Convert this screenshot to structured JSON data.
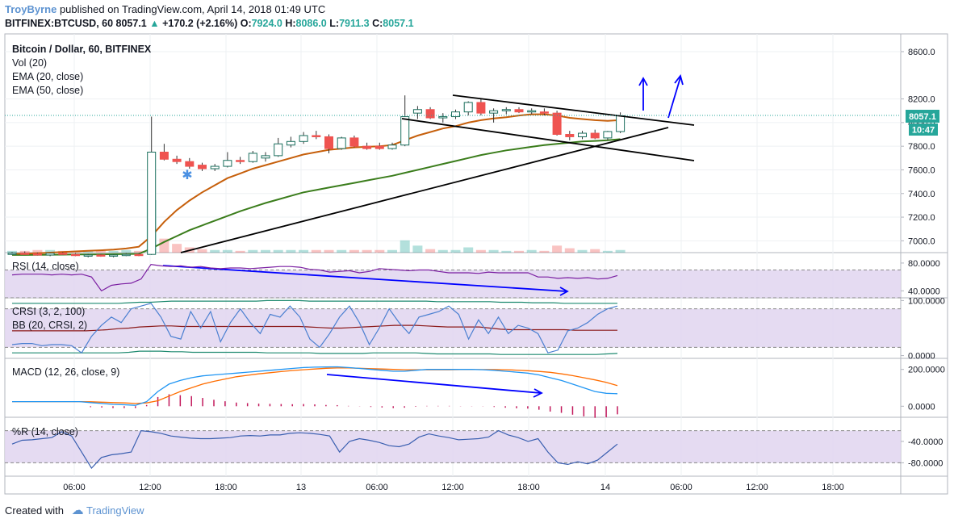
{
  "header": {
    "author": "TroyByrne",
    "published": "published on TradingView.com, April 14, 2018 01:49 UTC",
    "symbol": "BITFINEX:BTCUSD, 60",
    "last": "8057.1",
    "change": "+170.2 (+2.16%)",
    "o_label": "O:",
    "o": "7924.0",
    "h_label": "H:",
    "h": "8086.0",
    "l_label": "L:",
    "l": "7911.3",
    "c_label": "C:",
    "c": "8057.1"
  },
  "legend": {
    "title": "Bitcoin / Dollar, 60, BITFINEX",
    "vol": "Vol (20)",
    "ema20": "EMA (20, close)",
    "ema50": "EMA (50, close)"
  },
  "price_tag": {
    "price": "8057.1",
    "countdown": "10:47"
  },
  "footer": {
    "created": "Created with",
    "brand": "TradingView"
  },
  "colors": {
    "up": "#26a69a",
    "down": "#ef5350",
    "ema20": "#c65f0b",
    "ema50": "#3b7d1c",
    "trend": "#000000",
    "arrow": "#0000ff",
    "band": "#e1d5f0",
    "rsi": "#7b1fa2",
    "crsi": "#4a7fd1",
    "bbmid": "#8b1a1a",
    "bbband": "#1f8a70",
    "macd": "#2196f3",
    "signal": "#ff6d00",
    "hist": "#c2185b",
    "wr": "#3a5fb0"
  },
  "chart_data": [
    {
      "type": "candlestick",
      "title": "Bitcoin / Dollar, 60, BITFINEX",
      "ylim": [
        6900,
        8750
      ],
      "ticks": [
        8600,
        8200,
        8000,
        7800,
        7600,
        7400,
        7200,
        7000
      ],
      "tick_labels": [
        "8600.0",
        "8200.0",
        "8000.0",
        "7800.0",
        "7600.0",
        "7400.0",
        "7200.0",
        "7000.0"
      ],
      "x_labels": [
        "06:00",
        "12:00",
        "18:00",
        "13",
        "06:00",
        "12:00",
        "18:00",
        "14",
        "06:00",
        "12:00",
        "18:00"
      ],
      "candles": [
        {
          "o": 6890,
          "h": 6905,
          "l": 6880,
          "c": 6895
        },
        {
          "o": 6895,
          "h": 6910,
          "l": 6885,
          "c": 6890
        },
        {
          "o": 6890,
          "h": 6900,
          "l": 6875,
          "c": 6880
        },
        {
          "o": 6880,
          "h": 6900,
          "l": 6870,
          "c": 6895
        },
        {
          "o": 6895,
          "h": 6905,
          "l": 6880,
          "c": 6885
        },
        {
          "o": 6885,
          "h": 6895,
          "l": 6870,
          "c": 6875
        },
        {
          "o": 6875,
          "h": 6890,
          "l": 6860,
          "c": 6880
        },
        {
          "o": 6880,
          "h": 6890,
          "l": 6865,
          "c": 6870
        },
        {
          "o": 6870,
          "h": 6885,
          "l": 6860,
          "c": 6880
        },
        {
          "o": 6880,
          "h": 6895,
          "l": 6870,
          "c": 6885
        },
        {
          "o": 6885,
          "h": 6895,
          "l": 6870,
          "c": 6880
        },
        {
          "o": 6885,
          "h": 8050,
          "l": 6880,
          "c": 7750
        },
        {
          "o": 7750,
          "h": 7820,
          "l": 7680,
          "c": 7690
        },
        {
          "o": 7690,
          "h": 7720,
          "l": 7650,
          "c": 7670
        },
        {
          "o": 7670,
          "h": 7700,
          "l": 7610,
          "c": 7630
        },
        {
          "o": 7640,
          "h": 7660,
          "l": 7590,
          "c": 7610
        },
        {
          "o": 7610,
          "h": 7650,
          "l": 7590,
          "c": 7630
        },
        {
          "o": 7630,
          "h": 7750,
          "l": 7620,
          "c": 7680
        },
        {
          "o": 7680,
          "h": 7710,
          "l": 7650,
          "c": 7670
        },
        {
          "o": 7670,
          "h": 7760,
          "l": 7660,
          "c": 7740
        },
        {
          "o": 7700,
          "h": 7750,
          "l": 7670,
          "c": 7720
        },
        {
          "o": 7720,
          "h": 7870,
          "l": 7710,
          "c": 7820
        },
        {
          "o": 7810,
          "h": 7880,
          "l": 7790,
          "c": 7840
        },
        {
          "o": 7840,
          "h": 7920,
          "l": 7820,
          "c": 7890
        },
        {
          "o": 7890,
          "h": 7930,
          "l": 7860,
          "c": 7880
        },
        {
          "o": 7880,
          "h": 7900,
          "l": 7740,
          "c": 7780
        },
        {
          "o": 7780,
          "h": 7880,
          "l": 7770,
          "c": 7870
        },
        {
          "o": 7870,
          "h": 7890,
          "l": 7790,
          "c": 7800
        },
        {
          "o": 7800,
          "h": 7830,
          "l": 7770,
          "c": 7780
        },
        {
          "o": 7800,
          "h": 7830,
          "l": 7770,
          "c": 7780
        },
        {
          "o": 7780,
          "h": 7830,
          "l": 7770,
          "c": 7810
        },
        {
          "o": 7810,
          "h": 8230,
          "l": 7800,
          "c": 8050
        },
        {
          "o": 8080,
          "h": 8140,
          "l": 8030,
          "c": 8110
        },
        {
          "o": 8110,
          "h": 8130,
          "l": 8030,
          "c": 8040
        },
        {
          "o": 8040,
          "h": 8080,
          "l": 8000,
          "c": 8050
        },
        {
          "o": 8050,
          "h": 8110,
          "l": 8030,
          "c": 8090
        },
        {
          "o": 8090,
          "h": 8180,
          "l": 8060,
          "c": 8170
        },
        {
          "o": 8170,
          "h": 8200,
          "l": 8060,
          "c": 8080
        },
        {
          "o": 8080,
          "h": 8120,
          "l": 8000,
          "c": 8100
        },
        {
          "o": 8100,
          "h": 8130,
          "l": 8070,
          "c": 8110
        },
        {
          "o": 8110,
          "h": 8130,
          "l": 8080,
          "c": 8090
        },
        {
          "o": 8090,
          "h": 8120,
          "l": 8070,
          "c": 8100
        },
        {
          "o": 8090,
          "h": 8120,
          "l": 8060,
          "c": 8080
        },
        {
          "o": 8080,
          "h": 8100,
          "l": 7890,
          "c": 7900
        },
        {
          "o": 7900,
          "h": 7930,
          "l": 7850,
          "c": 7880
        },
        {
          "o": 7880,
          "h": 7930,
          "l": 7860,
          "c": 7910
        },
        {
          "o": 7910,
          "h": 7940,
          "l": 7860,
          "c": 7870
        },
        {
          "o": 7870,
          "h": 7930,
          "l": 7850,
          "c": 7924
        },
        {
          "o": 7924,
          "h": 8086,
          "l": 7911,
          "c": 8057
        }
      ],
      "ema20": [
        6890,
        6892,
        6895,
        6900,
        6905,
        6910,
        6915,
        6920,
        6925,
        6935,
        6950,
        7040,
        7160,
        7260,
        7340,
        7410,
        7470,
        7530,
        7570,
        7610,
        7640,
        7670,
        7700,
        7730,
        7750,
        7770,
        7780,
        7790,
        7795,
        7800,
        7810,
        7850,
        7890,
        7920,
        7950,
        7970,
        8000,
        8020,
        8035,
        8045,
        8060,
        8070,
        8070,
        8060,
        8040,
        8030,
        8020,
        8015,
        8020
      ],
      "ema50": [
        6880,
        6880,
        6881,
        6882,
        6883,
        6884,
        6885,
        6886,
        6887,
        6888,
        6890,
        6935,
        6990,
        7040,
        7090,
        7130,
        7170,
        7210,
        7250,
        7285,
        7320,
        7350,
        7380,
        7410,
        7430,
        7450,
        7470,
        7490,
        7510,
        7530,
        7550,
        7575,
        7600,
        7625,
        7650,
        7675,
        7700,
        7725,
        7745,
        7765,
        7780,
        7795,
        7810,
        7820,
        7830,
        7840,
        7845,
        7850,
        7860
      ],
      "volume": [
        2,
        2,
        3,
        3,
        2,
        2,
        2,
        2,
        2,
        3,
        2,
        60,
        16,
        10,
        6,
        4,
        3,
        3,
        2,
        3,
        3,
        3,
        3,
        3,
        3,
        3,
        3,
        3,
        3,
        3,
        3,
        14,
        8,
        4,
        3,
        3,
        6,
        3,
        3,
        2,
        2,
        3,
        2,
        8,
        5,
        3,
        4,
        2,
        3
      ],
      "annotations": [
        "resistance trend line",
        "support trend line",
        "wedge lines",
        "up arrows"
      ]
    },
    {
      "type": "line",
      "name": "RSI (14, close)",
      "ylim": [
        30,
        95
      ],
      "tick_labels": [
        "80.0000",
        "40.0000"
      ],
      "band": [
        30,
        70
      ],
      "values": [
        63,
        64,
        64,
        64,
        63,
        64,
        63,
        64,
        60,
        40,
        48,
        50,
        51,
        57,
        78,
        76,
        75,
        76,
        74,
        75,
        73,
        72,
        73,
        73,
        72,
        73,
        74,
        75,
        75,
        74,
        71,
        70,
        67,
        68,
        69,
        66,
        68,
        72,
        71,
        70,
        69,
        70,
        70,
        68,
        66,
        66,
        66,
        65,
        67,
        66,
        66,
        66,
        66,
        60,
        60,
        58,
        59,
        58,
        59,
        57,
        58,
        62
      ]
    },
    {
      "type": "line",
      "name": "CRSI (3, 2, 100)",
      "ylim": [
        -5,
        105
      ],
      "tick_labels": [
        "100.0000",
        "0.0000"
      ],
      "band": [
        15,
        85
      ],
      "crsi": [
        20,
        22,
        22,
        18,
        20,
        20,
        18,
        5,
        35,
        55,
        70,
        60,
        85,
        90,
        95,
        70,
        35,
        30,
        80,
        50,
        80,
        25,
        60,
        85,
        60,
        40,
        75,
        70,
        90,
        70,
        30,
        15,
        40,
        70,
        90,
        60,
        20,
        50,
        85,
        60,
        40,
        70,
        75,
        80,
        90,
        75,
        30,
        65,
        40,
        70,
        40,
        55,
        50,
        40,
        5,
        10,
        45,
        50,
        60,
        75,
        85,
        90
      ],
      "bb_mid": [
        45,
        45,
        45,
        45,
        45,
        45,
        45,
        45,
        46,
        47,
        49,
        50,
        52,
        53,
        54,
        54,
        53,
        53,
        53,
        53,
        53,
        53,
        53,
        53,
        53,
        53,
        53,
        53,
        52,
        51,
        50,
        50,
        51,
        52,
        53,
        54,
        55,
        55,
        55,
        54,
        53,
        52,
        52,
        52,
        52,
        50,
        48,
        47,
        47,
        47,
        47,
        47,
        47,
        46,
        46,
        46,
        46,
        46
      ],
      "bb_upper": [
        95,
        95,
        95,
        95,
        95,
        95,
        95,
        95,
        95,
        95,
        95,
        96,
        97,
        97,
        98,
        99,
        99,
        99,
        99,
        99,
        99,
        99,
        99,
        99,
        100,
        100,
        100,
        100,
        99,
        99,
        99,
        99,
        99,
        99,
        99,
        99,
        99,
        99,
        99,
        99,
        98,
        98,
        98,
        98,
        98,
        98,
        97,
        97,
        97,
        96,
        96,
        96,
        95,
        95,
        95,
        95,
        95,
        95
      ],
      "bb_lower": [
        5,
        5,
        5,
        5,
        5,
        5,
        5,
        5,
        5,
        5,
        5,
        6,
        8,
        8,
        8,
        7,
        7,
        6,
        6,
        6,
        6,
        6,
        6,
        6,
        5,
        5,
        5,
        5,
        5,
        4,
        4,
        4,
        4,
        4,
        5,
        5,
        5,
        5,
        5,
        4,
        3,
        3,
        3,
        3,
        3,
        3,
        2,
        2,
        2,
        2,
        2,
        2,
        2,
        2,
        2,
        2,
        3,
        4
      ]
    },
    {
      "type": "line",
      "name": "MACD (12, 26, close, 9)",
      "ylim": [
        -60,
        260
      ],
      "tick_labels": [
        "200.0000",
        "0.0000"
      ],
      "macd": [
        25,
        25,
        25,
        25,
        25,
        25,
        25,
        20,
        15,
        10,
        8,
        5,
        25,
        80,
        120,
        140,
        155,
        165,
        170,
        175,
        180,
        185,
        190,
        195,
        200,
        205,
        210,
        212,
        213,
        214,
        210,
        205,
        200,
        195,
        190,
        190,
        195,
        200,
        200,
        200,
        200,
        200,
        198,
        195,
        190,
        185,
        180,
        170,
        155,
        140,
        120,
        100,
        80,
        70,
        68
      ],
      "signal": [
        25,
        25,
        25,
        25,
        25,
        25,
        25,
        24,
        22,
        20,
        18,
        15,
        18,
        30,
        55,
        80,
        100,
        120,
        135,
        148,
        160,
        168,
        176,
        182,
        188,
        194,
        198,
        202,
        206,
        208,
        208,
        206,
        204,
        202,
        200,
        198,
        198,
        198,
        198,
        198,
        199,
        199,
        199,
        199,
        198,
        196,
        193,
        189,
        184,
        176,
        166,
        155,
        143,
        130,
        112
      ],
      "hist": [
        0,
        0,
        0,
        0,
        0,
        0,
        0,
        -5,
        -7,
        -10,
        -10,
        -10,
        7,
        50,
        65,
        60,
        55,
        45,
        35,
        27,
        20,
        17,
        14,
        13,
        12,
        11,
        12,
        10,
        7,
        6,
        2,
        -1,
        -4,
        -7,
        -10,
        -8,
        -3,
        2,
        2,
        2,
        1,
        1,
        -1,
        -4,
        -8,
        -11,
        -13,
        -19,
        -29,
        -36,
        -46,
        -55,
        -63,
        -60,
        -44
      ]
    },
    {
      "type": "line",
      "name": "%R (14, close)",
      "ylim": [
        -105,
        5
      ],
      "tick_labels": [
        "-40.0000",
        "-80.0000"
      ],
      "band": [
        -20,
        -80
      ],
      "values": [
        -45,
        -38,
        -37,
        -35,
        -33,
        -22,
        -30,
        -60,
        -90,
        -70,
        -65,
        -63,
        -60,
        -20,
        -22,
        -25,
        -30,
        -32,
        -34,
        -35,
        -35,
        -34,
        -33,
        -30,
        -29,
        -30,
        -28,
        -28,
        -25,
        -24,
        -25,
        -27,
        -30,
        -60,
        -40,
        -35,
        -38,
        -42,
        -48,
        -50,
        -45,
        -32,
        -26,
        -30,
        -33,
        -37,
        -36,
        -35,
        -32,
        -20,
        -28,
        -33,
        -40,
        -35,
        -60,
        -80,
        -83,
        -78,
        -82,
        -75,
        -60,
        -45
      ]
    }
  ]
}
